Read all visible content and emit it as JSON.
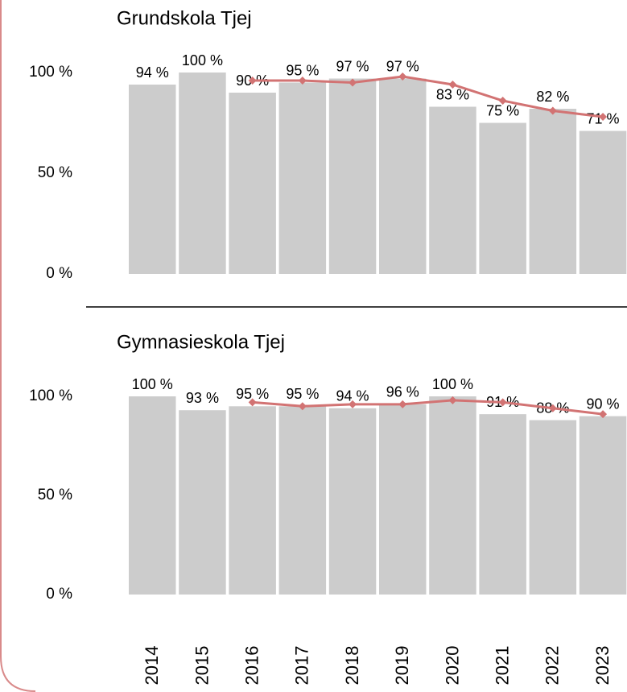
{
  "chart_data": [
    {
      "type": "bar",
      "title": "Grundskola Tjej",
      "ylim": [
        0,
        100
      ],
      "yticks": [
        {
          "value": 0,
          "label": "0 %"
        },
        {
          "value": 50,
          "label": "50 %"
        },
        {
          "value": 100,
          "label": "100 %"
        }
      ],
      "series": [
        {
          "type": "bar",
          "color": "#cccccc",
          "values": [
            94,
            100,
            90,
            95,
            97,
            97,
            83,
            75,
            82,
            71
          ],
          "value_labels": [
            "94 %",
            "100 %",
            "90 %",
            "95 %",
            "97 %",
            "97 %",
            "83 %",
            "75 %",
            "82 %",
            "71 %"
          ]
        },
        {
          "type": "line",
          "color": "#d27373",
          "values": [
            null,
            null,
            96,
            96,
            95,
            98,
            94,
            86,
            81,
            78
          ]
        }
      ]
    },
    {
      "type": "bar",
      "title": "Gymnasieskola Tjej",
      "categories": [
        "2014",
        "2015",
        "2016",
        "2017",
        "2018",
        "2019",
        "2020",
        "2021",
        "2022",
        "2023"
      ],
      "ylim": [
        0,
        100
      ],
      "yticks": [
        {
          "value": 0,
          "label": "0 %"
        },
        {
          "value": 50,
          "label": "50 %"
        },
        {
          "value": 100,
          "label": "100 %"
        }
      ],
      "series": [
        {
          "type": "bar",
          "color": "#cccccc",
          "values": [
            100,
            93,
            95,
            95,
            94,
            96,
            100,
            91,
            88,
            90
          ],
          "value_labels": [
            "100 %",
            "93 %",
            "95 %",
            "95 %",
            "94 %",
            "96 %",
            "100 %",
            "91 %",
            "88 %",
            "90 %"
          ]
        },
        {
          "type": "line",
          "color": "#d27373",
          "values": [
            null,
            null,
            97,
            95,
            96,
            96,
            98,
            97,
            94,
            91
          ]
        }
      ]
    }
  ]
}
